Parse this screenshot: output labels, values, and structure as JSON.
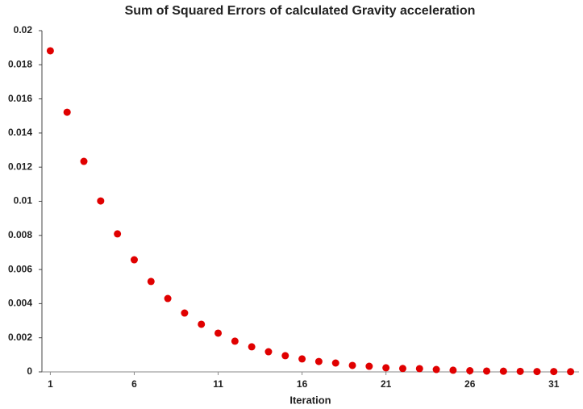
{
  "chart_data": {
    "type": "scatter",
    "title": "Sum of Squared Errors of calculated Gravity acceleration",
    "x_label": "Iteration",
    "color": "#e00000",
    "x": [
      1,
      2,
      3,
      4,
      5,
      6,
      7,
      8,
      9,
      10,
      11,
      12,
      13,
      14,
      15,
      16,
      17,
      18,
      19,
      20,
      21,
      22,
      23,
      24,
      25,
      26,
      27,
      28,
      29,
      30,
      31,
      32
    ],
    "values": [
      0.01882,
      0.01522,
      0.01234,
      0.01002,
      0.00809,
      0.00657,
      0.0053,
      0.0043,
      0.00345,
      0.00279,
      0.00227,
      0.0018,
      0.00147,
      0.00118,
      0.00095,
      0.00076,
      0.00061,
      0.00052,
      0.00038,
      0.00033,
      0.00024,
      0.0002,
      0.00019,
      0.00014,
      0.0001,
      7e-05,
      5e-05,
      4e-05,
      3e-05,
      2e-05,
      2e-05,
      1e-05
    ],
    "xlim": [
      0.5,
      32.5
    ],
    "xticks": [
      1,
      6,
      11,
      16,
      21,
      26,
      31
    ],
    "ylim": [
      0,
      0.02
    ],
    "yticks": [
      0,
      0.002,
      0.004,
      0.006,
      0.008,
      0.01,
      0.012,
      0.014,
      0.016,
      0.018,
      0.02
    ],
    "grid": false
  }
}
